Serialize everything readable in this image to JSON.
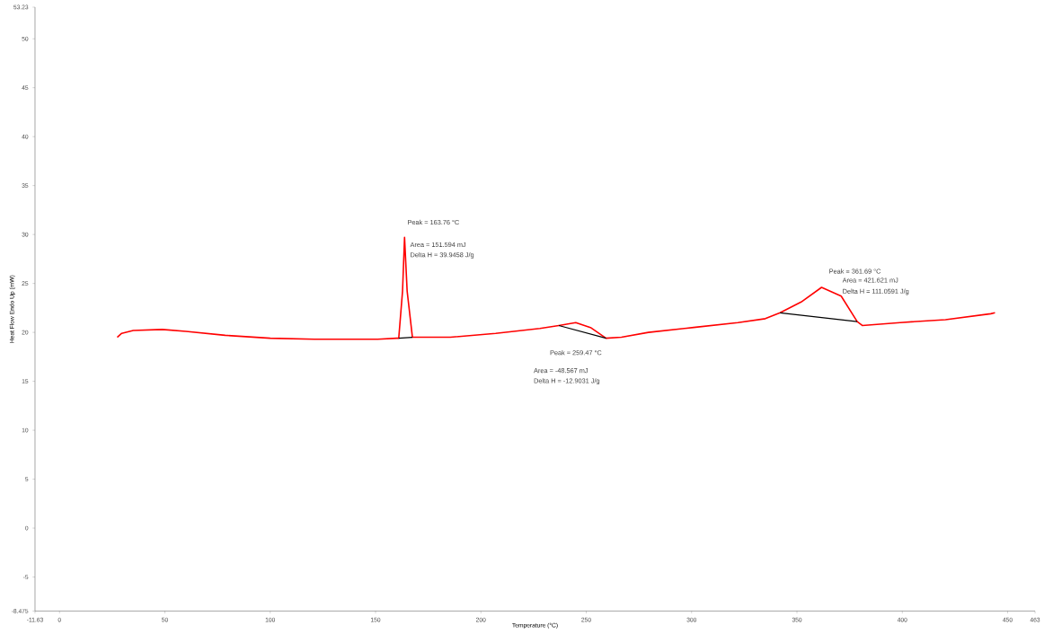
{
  "chart_data": {
    "type": "line",
    "xlabel": "Temperature (°C)",
    "ylabel": "Heat Flow Endo Up (mW)",
    "xlim": [
      -11.63,
      463
    ],
    "ylim": [
      -8.475,
      53.23
    ],
    "xticks": [
      -11.63,
      0,
      50,
      100,
      150,
      200,
      250,
      300,
      350,
      400,
      450,
      463
    ],
    "yticks": [
      -8.475,
      -5,
      0,
      5,
      10,
      15,
      20,
      25,
      30,
      35,
      40,
      45,
      50,
      53.23
    ],
    "grid": false,
    "marker": "none",
    "line_style": "solid",
    "series": [
      {
        "color": "#ff0000",
        "x": [
          27.4,
          29.5,
          35,
          48.7,
          60,
          78.6,
          100,
          121,
          151,
          160,
          161,
          162.8,
          163.76,
          165,
          167.5,
          185.5,
          207,
          228,
          237,
          245,
          252,
          259.4,
          266.7,
          279.5,
          301,
          322,
          335,
          342,
          352,
          361.69,
          371,
          378.6,
          381,
          399,
          420.5,
          442,
          444
        ],
        "values": [
          19.5,
          19.9,
          20.2,
          20.3,
          20.1,
          19.7,
          19.4,
          19.3,
          19.3,
          19.4,
          19.4,
          24.2,
          29.7,
          24.2,
          19.5,
          19.5,
          19.9,
          20.4,
          20.7,
          21.0,
          20.5,
          19.4,
          19.5,
          20.0,
          20.5,
          21.0,
          21.4,
          22.0,
          23.1,
          24.6,
          23.7,
          21.1,
          20.7,
          21.0,
          21.3,
          21.9,
          22.0
        ]
      },
      {
        "color": "#000000",
        "x": [
          161,
          167.5,
          200,
          237,
          259.4,
          300,
          342,
          378.6
        ],
        "values": [
          19.4,
          19.5,
          null,
          20.7,
          19.4,
          null,
          22.0,
          21.1
        ]
      }
    ],
    "annotations": [
      {
        "text": "Peak = 163.76 °C",
        "x": 163.76,
        "y": 29.7
      },
      "Area = 151.594 mJ",
      "Delta H = 39.9458 J/g",
      {
        "text": "Peak = 259.47 °C",
        "x": 259.47,
        "y": 19.4
      },
      "Area = -48.567 mJ",
      "Delta H = -12.9031 J/g",
      {
        "text": "Peak = 361.69 °C",
        "x": 361.69,
        "y": 24.6
      },
      "Area = 421.621 mJ",
      "Delta H = 111.0591 J/g"
    ]
  }
}
